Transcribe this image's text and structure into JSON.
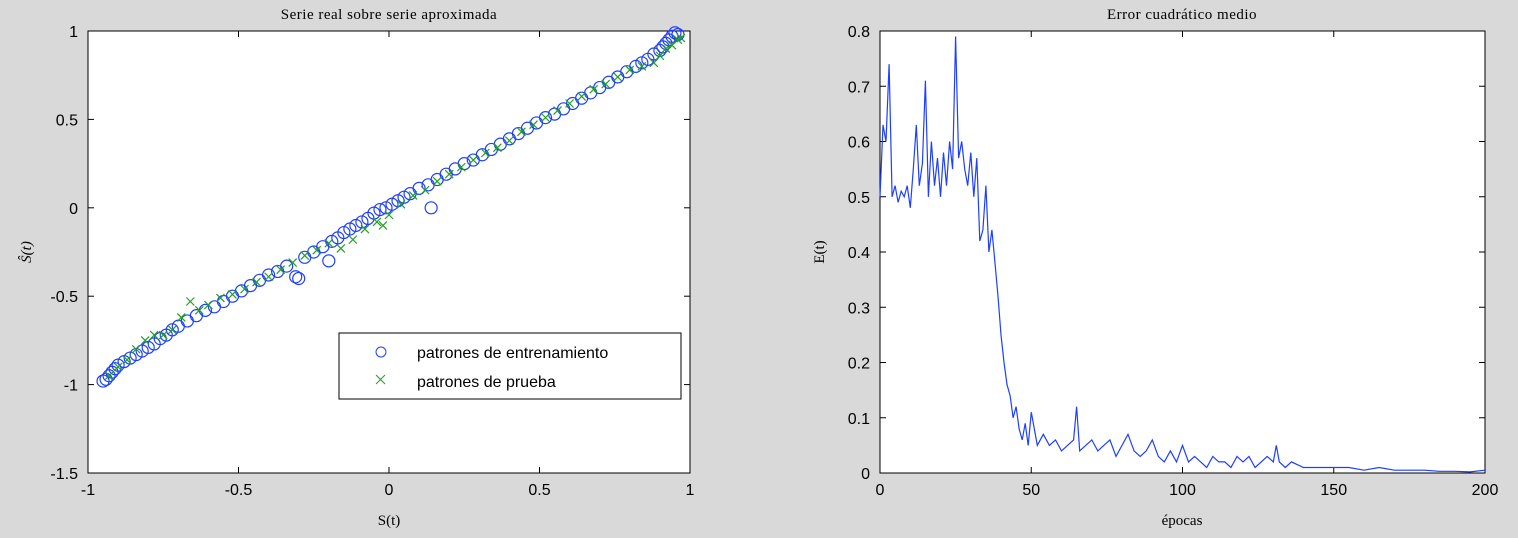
{
  "chart_data": [
    {
      "type": "scatter",
      "title": "Serie real sobre serie aproximada",
      "xlabel": "S(t)",
      "ylabel": "Ŝ(t)",
      "xlim": [
        -1,
        1
      ],
      "ylim": [
        -1.5,
        1
      ],
      "xticks": [
        "-1",
        "-0.5",
        "0",
        "0.5",
        "1"
      ],
      "yticks": [
        "-1.5",
        "-1",
        "-0.5",
        "0",
        "0.5",
        "1"
      ],
      "grid": false,
      "legend_position": "bottom-right",
      "series": [
        {
          "name": "patrones de entrenamiento",
          "marker": "circle",
          "color": "#1f3fff",
          "x": [
            -0.95,
            -0.94,
            -0.93,
            -0.92,
            -0.91,
            -0.9,
            -0.88,
            -0.86,
            -0.84,
            -0.82,
            -0.8,
            -0.78,
            -0.76,
            -0.74,
            -0.72,
            -0.7,
            -0.67,
            -0.64,
            -0.61,
            -0.58,
            -0.55,
            -0.52,
            -0.49,
            -0.46,
            -0.43,
            -0.4,
            -0.37,
            -0.34,
            -0.31,
            -0.3,
            -0.28,
            -0.25,
            -0.22,
            -0.2,
            -0.19,
            -0.17,
            -0.15,
            -0.13,
            -0.11,
            -0.09,
            -0.07,
            -0.05,
            -0.03,
            -0.01,
            0.01,
            0.03,
            0.05,
            0.07,
            0.1,
            0.13,
            0.14,
            0.16,
            0.19,
            0.22,
            0.25,
            0.28,
            0.31,
            0.34,
            0.37,
            0.4,
            0.43,
            0.46,
            0.49,
            0.52,
            0.55,
            0.58,
            0.61,
            0.64,
            0.67,
            0.7,
            0.73,
            0.76,
            0.79,
            0.82,
            0.84,
            0.86,
            0.88,
            0.9,
            0.91,
            0.92,
            0.93,
            0.94,
            0.95,
            0.96
          ],
          "y": [
            -0.98,
            -0.97,
            -0.95,
            -0.93,
            -0.91,
            -0.89,
            -0.87,
            -0.85,
            -0.83,
            -0.81,
            -0.79,
            -0.77,
            -0.74,
            -0.72,
            -0.69,
            -0.67,
            -0.64,
            -0.61,
            -0.58,
            -0.56,
            -0.53,
            -0.5,
            -0.47,
            -0.44,
            -0.41,
            -0.38,
            -0.36,
            -0.33,
            -0.39,
            -0.4,
            -0.28,
            -0.25,
            -0.22,
            -0.3,
            -0.19,
            -0.17,
            -0.14,
            -0.12,
            -0.1,
            -0.08,
            -0.06,
            -0.03,
            -0.01,
            0.0,
            0.02,
            0.04,
            0.06,
            0.08,
            0.11,
            0.13,
            0.0,
            0.16,
            0.19,
            0.22,
            0.25,
            0.27,
            0.3,
            0.33,
            0.36,
            0.39,
            0.42,
            0.45,
            0.48,
            0.51,
            0.53,
            0.56,
            0.59,
            0.62,
            0.65,
            0.68,
            0.71,
            0.74,
            0.77,
            0.8,
            0.82,
            0.84,
            0.87,
            0.89,
            0.91,
            0.93,
            0.95,
            0.97,
            0.99,
            0.98
          ]
        },
        {
          "name": "patrones de prueba",
          "marker": "cross",
          "color": "#22a022",
          "x": [
            -0.93,
            -0.9,
            -0.87,
            -0.84,
            -0.81,
            -0.78,
            -0.75,
            -0.72,
            -0.69,
            -0.66,
            -0.63,
            -0.6,
            -0.56,
            -0.52,
            -0.48,
            -0.44,
            -0.4,
            -0.36,
            -0.32,
            -0.28,
            -0.24,
            -0.2,
            -0.16,
            -0.12,
            -0.08,
            -0.04,
            -0.02,
            0.0,
            0.04,
            0.08,
            0.12,
            0.16,
            0.2,
            0.24,
            0.28,
            0.32,
            0.36,
            0.4,
            0.44,
            0.48,
            0.52,
            0.56,
            0.6,
            0.64,
            0.68,
            0.72,
            0.76,
            0.8,
            0.84,
            0.88,
            0.9,
            0.92,
            0.94,
            0.96,
            0.97
          ],
          "y": [
            -0.95,
            -0.9,
            -0.86,
            -0.8,
            -0.75,
            -0.72,
            -0.72,
            -0.69,
            -0.62,
            -0.53,
            -0.58,
            -0.55,
            -0.51,
            -0.49,
            -0.46,
            -0.42,
            -0.39,
            -0.35,
            -0.31,
            -0.27,
            -0.24,
            -0.2,
            -0.23,
            -0.18,
            -0.12,
            -0.08,
            -0.1,
            -0.04,
            0.02,
            0.07,
            0.1,
            0.15,
            0.19,
            0.23,
            0.27,
            0.31,
            0.34,
            0.38,
            0.43,
            0.47,
            0.51,
            0.55,
            0.59,
            0.63,
            0.67,
            0.7,
            0.74,
            0.78,
            0.8,
            0.82,
            0.86,
            0.9,
            0.92,
            0.95,
            0.96
          ]
        }
      ]
    },
    {
      "type": "line",
      "title": "Error cuadrático medio",
      "xlabel": "épocas",
      "ylabel": "E(t)",
      "xlim": [
        0,
        200
      ],
      "ylim": [
        0,
        0.8
      ],
      "xticks": [
        "0",
        "50",
        "100",
        "150",
        "200"
      ],
      "yticks": [
        "0",
        "0.1",
        "0.2",
        "0.3",
        "0.4",
        "0.5",
        "0.6",
        "0.7",
        "0.8"
      ],
      "grid": false,
      "series": [
        {
          "color": "#1f3fff",
          "x": [
            0,
            1,
            2,
            3,
            4,
            5,
            6,
            7,
            8,
            9,
            10,
            11,
            12,
            13,
            14,
            15,
            16,
            17,
            18,
            19,
            20,
            21,
            22,
            23,
            24,
            25,
            26,
            27,
            28,
            29,
            30,
            31,
            32,
            33,
            34,
            35,
            36,
            37,
            38,
            39,
            40,
            41,
            42,
            43,
            44,
            45,
            46,
            47,
            48,
            49,
            50,
            52,
            54,
            56,
            58,
            60,
            62,
            64,
            65,
            66,
            68,
            70,
            72,
            74,
            76,
            78,
            80,
            82,
            84,
            86,
            88,
            90,
            92,
            94,
            96,
            98,
            100,
            102,
            104,
            106,
            108,
            110,
            112,
            114,
            116,
            118,
            120,
            122,
            124,
            126,
            128,
            130,
            131,
            132,
            134,
            136,
            140,
            145,
            150,
            155,
            160,
            165,
            170,
            175,
            180,
            185,
            190,
            195,
            200
          ],
          "y": [
            0.5,
            0.63,
            0.6,
            0.74,
            0.5,
            0.52,
            0.49,
            0.51,
            0.5,
            0.52,
            0.48,
            0.55,
            0.63,
            0.52,
            0.56,
            0.71,
            0.5,
            0.6,
            0.52,
            0.57,
            0.5,
            0.58,
            0.52,
            0.6,
            0.55,
            0.79,
            0.57,
            0.6,
            0.55,
            0.52,
            0.58,
            0.5,
            0.57,
            0.42,
            0.44,
            0.52,
            0.4,
            0.44,
            0.38,
            0.32,
            0.25,
            0.2,
            0.16,
            0.14,
            0.1,
            0.12,
            0.08,
            0.06,
            0.09,
            0.05,
            0.11,
            0.05,
            0.07,
            0.05,
            0.06,
            0.04,
            0.05,
            0.06,
            0.12,
            0.04,
            0.05,
            0.06,
            0.04,
            0.05,
            0.06,
            0.03,
            0.05,
            0.07,
            0.04,
            0.03,
            0.04,
            0.06,
            0.03,
            0.02,
            0.04,
            0.02,
            0.05,
            0.02,
            0.03,
            0.02,
            0.01,
            0.03,
            0.02,
            0.02,
            0.01,
            0.03,
            0.02,
            0.03,
            0.01,
            0.02,
            0.03,
            0.02,
            0.05,
            0.02,
            0.01,
            0.02,
            0.01,
            0.01,
            0.01,
            0.01,
            0.005,
            0.01,
            0.005,
            0.005,
            0.005,
            0.003,
            0.003,
            0.002,
            0.005
          ]
        }
      ]
    }
  ]
}
